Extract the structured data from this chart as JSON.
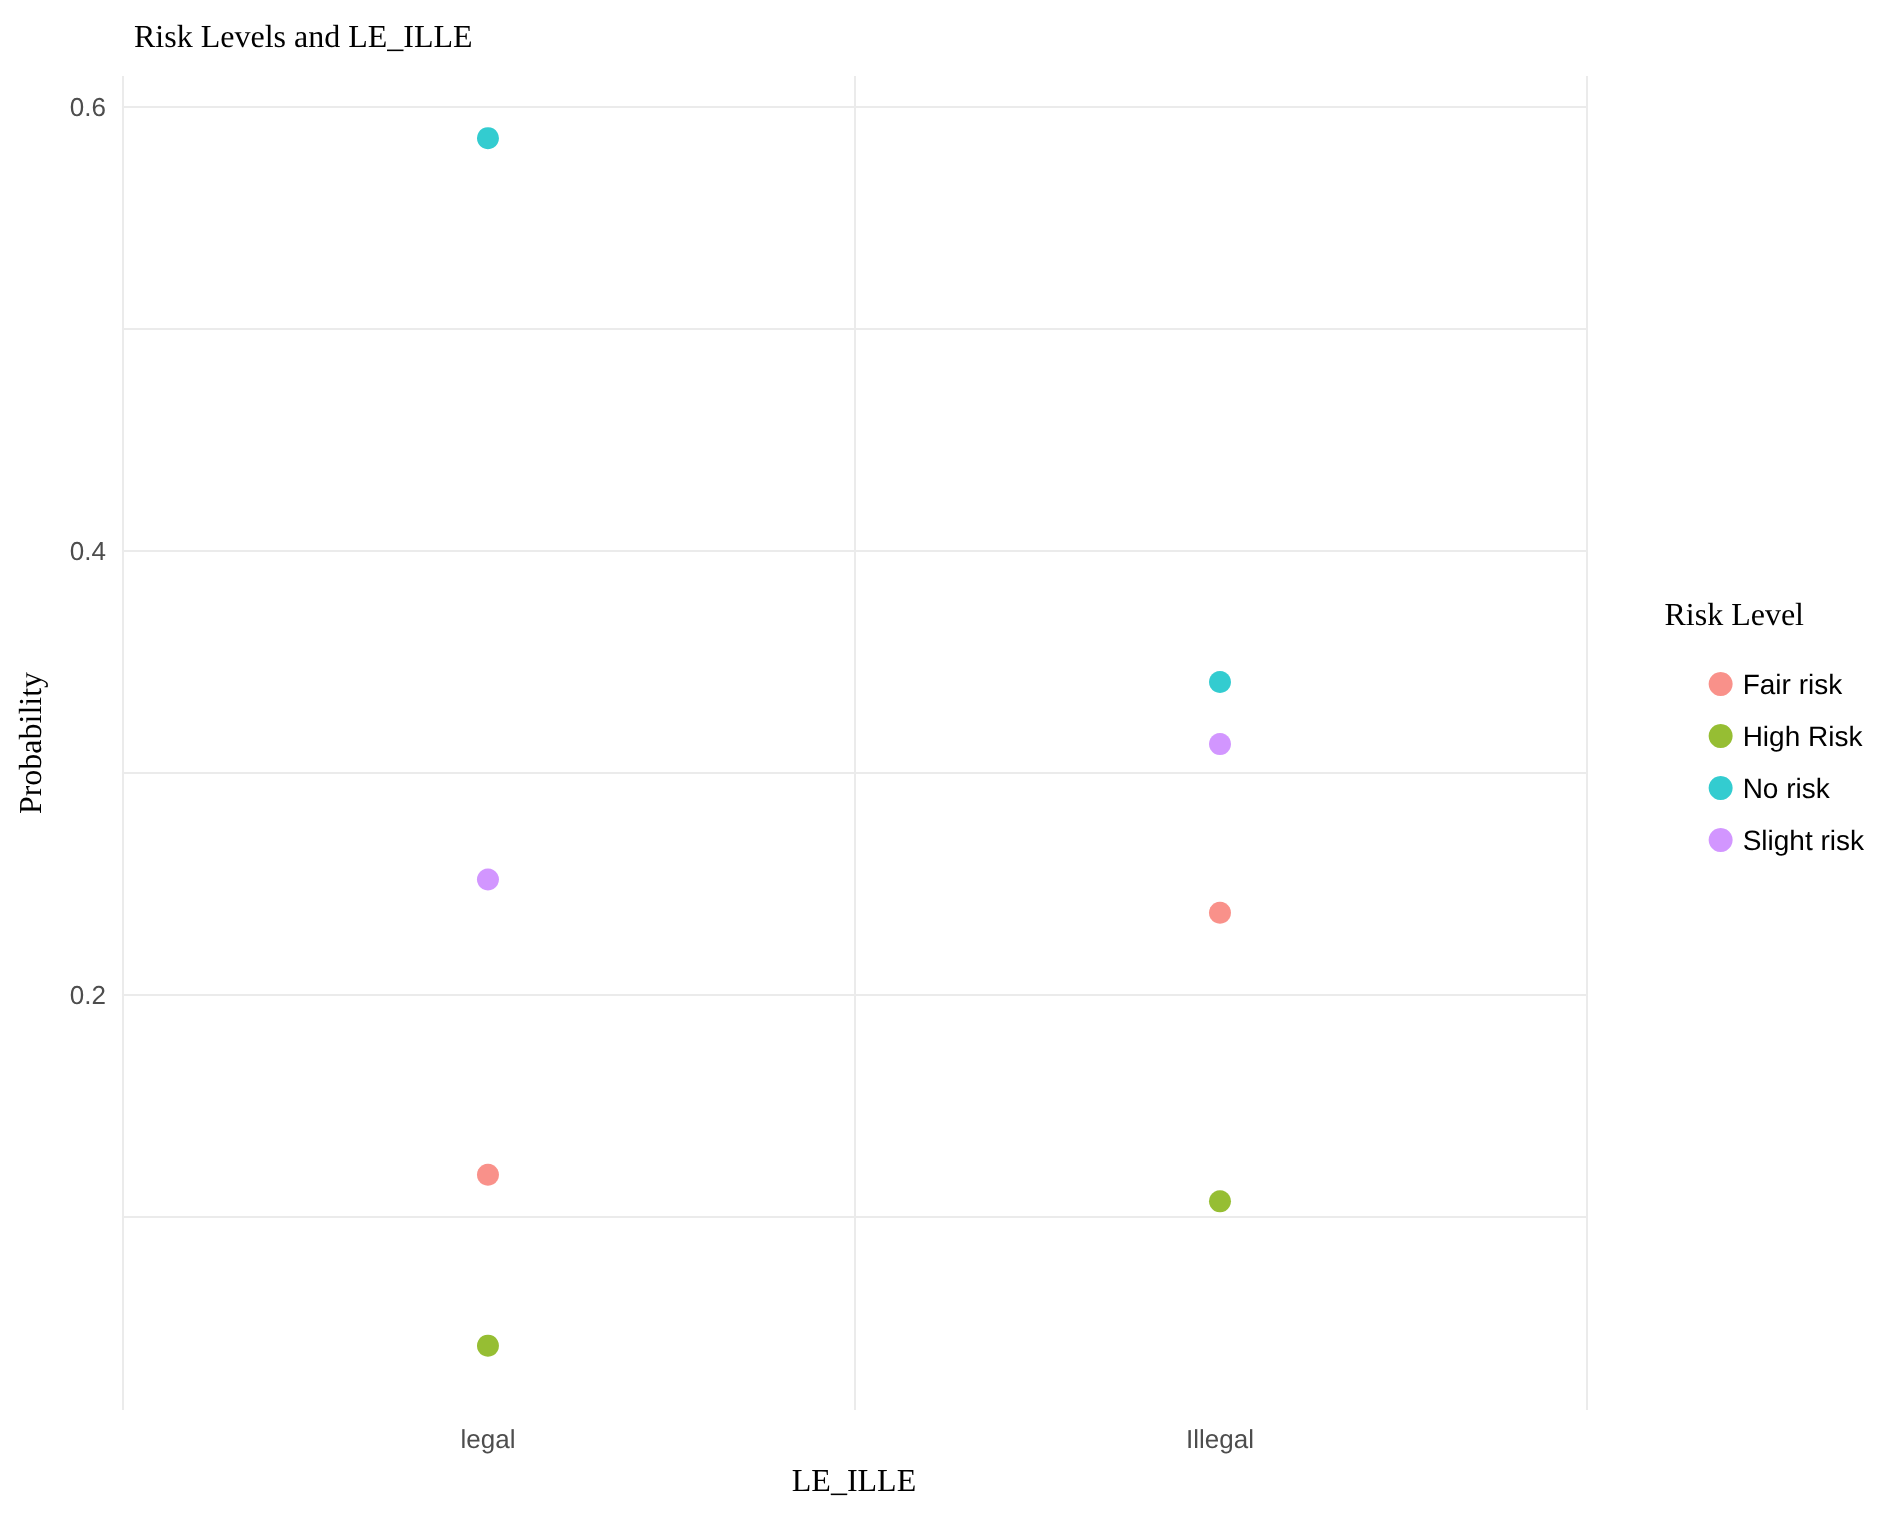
{
  "chart_data": {
    "type": "scatter",
    "title": "Risk Levels and LE_ILLE",
    "xlabel": "LE_ILLE",
    "ylabel": "Probability",
    "legend_title": "Risk Level",
    "categories": [
      "legal",
      "Illegal"
    ],
    "series": [
      {
        "name": "Fair risk",
        "color": "#f8766d",
        "values": [
          0.119,
          0.237
        ]
      },
      {
        "name": "High Risk",
        "color": "#7cae00",
        "values": [
          0.042,
          0.107
        ]
      },
      {
        "name": "No risk",
        "color": "#00bfc4",
        "values": [
          0.586,
          0.341
        ]
      },
      {
        "name": "Slight risk",
        "color": "#c77cff",
        "values": [
          0.252,
          0.313
        ]
      }
    ],
    "ylim": [
      0.013,
      0.614
    ],
    "yticks": [
      {
        "value": 0.1,
        "label": null
      },
      {
        "value": 0.2,
        "label": "0.2"
      },
      {
        "value": 0.3,
        "label": null
      },
      {
        "value": 0.4,
        "label": "0.4"
      },
      {
        "value": 0.5,
        "label": null
      },
      {
        "value": 0.6,
        "label": "0.6"
      }
    ],
    "grid": true,
    "legend": "right",
    "marker": "circle"
  }
}
